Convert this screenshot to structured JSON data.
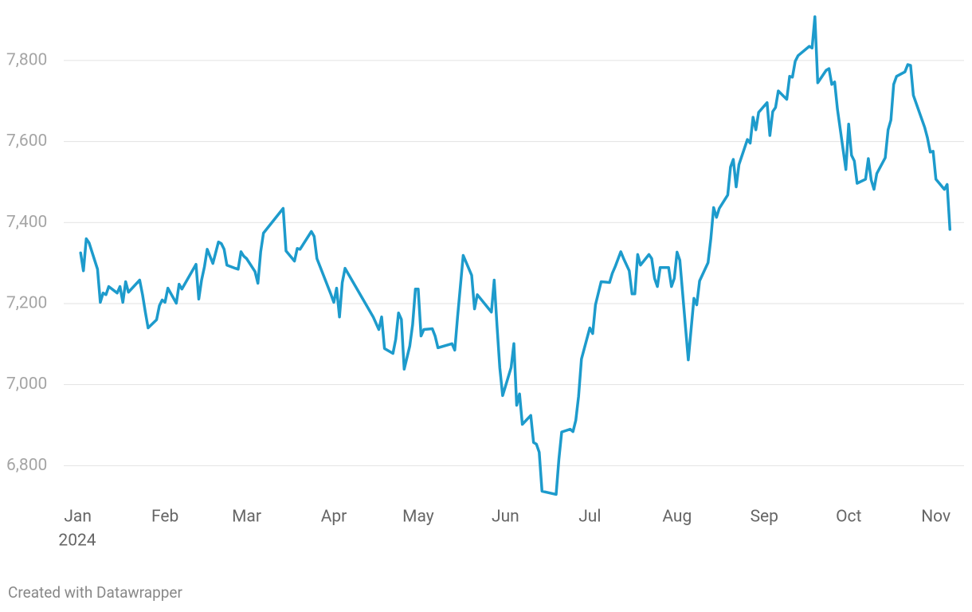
{
  "chart_data": {
    "type": "line",
    "x": [
      1,
      2,
      3,
      4,
      7,
      8,
      9,
      10,
      11,
      14,
      15,
      16,
      17,
      18,
      22,
      23,
      24,
      25,
      28,
      29,
      30,
      31,
      32,
      35,
      36,
      37,
      42,
      43,
      44,
      45,
      46,
      48,
      50,
      51,
      52,
      53,
      56,
      57,
      58,
      59,
      60,
      63,
      64,
      65,
      66,
      73,
      74,
      77,
      78,
      79,
      83,
      84,
      85,
      90,
      91,
      92,
      93,
      94,
      95,
      105,
      107,
      108,
      109,
      112,
      113,
      114,
      115,
      116,
      118,
      119,
      120,
      121,
      122,
      123,
      126,
      127,
      128,
      133,
      134,
      135,
      137,
      140,
      141,
      142,
      147,
      148,
      149,
      150,
      151,
      154,
      155,
      156,
      157,
      158,
      161,
      162,
      163,
      164,
      165,
      170,
      171,
      172,
      175,
      176,
      177,
      178,
      179,
      182,
      183,
      184,
      186,
      189,
      190,
      191,
      193,
      194,
      196,
      197,
      198,
      199,
      200,
      203,
      204,
      205,
      206,
      207,
      210,
      211,
      212,
      213,
      214,
      217,
      219,
      220,
      221,
      224,
      225,
      226,
      227,
      228,
      231,
      232,
      233,
      234,
      235,
      238,
      239,
      240,
      241,
      242,
      245,
      246,
      247,
      248,
      249,
      252,
      253,
      254,
      255,
      256,
      260,
      261,
      262,
      263,
      266,
      267,
      268,
      269,
      270,
      273,
      274,
      275,
      276,
      277,
      280,
      281,
      282,
      283,
      284,
      287,
      288,
      289,
      290,
      291,
      294,
      295,
      296,
      297,
      301,
      302,
      303,
      304,
      305,
      308,
      309,
      310
    ],
    "series": [
      {
        "color": "#1d9bcc",
        "values": [
          7325,
          7281,
          7360,
          7350,
          7285,
          7203,
          7226,
          7222,
          7242,
          7226,
          7242,
          7203,
          7254,
          7228,
          7258,
          7222,
          7179,
          7140,
          7160,
          7195,
          7209,
          7203,
          7238,
          7201,
          7248,
          7236,
          7297,
          7211,
          7258,
          7291,
          7334,
          7299,
          7352,
          7348,
          7334,
          7295,
          7287,
          7285,
          7328,
          7317,
          7311,
          7279,
          7250,
          7328,
          7374,
          7435,
          7330,
          7305,
          7336,
          7334,
          7378,
          7366,
          7311,
          7222,
          7203,
          7238,
          7167,
          7252,
          7287,
          7167,
          7136,
          7167,
          7089,
          7077,
          7112,
          7177,
          7161,
          7038,
          7095,
          7148,
          7236,
          7236,
          7120,
          7136,
          7138,
          7120,
          7091,
          7101,
          7085,
          7169,
          7319,
          7270,
          7187,
          7222,
          7179,
          7258,
          7146,
          7042,
          6973,
          7042,
          7101,
          6949,
          6977,
          6902,
          6924,
          6857,
          6853,
          6833,
          6737,
          6729,
          6816,
          6883,
          6890,
          6884,
          6912,
          6971,
          7063,
          7140,
          7126,
          7197,
          7254,
          7252,
          7275,
          7291,
          7328,
          7311,
          7281,
          7224,
          7224,
          7321,
          7295,
          7321,
          7311,
          7262,
          7242,
          7289,
          7289,
          7242,
          7262,
          7327,
          7307,
          7061,
          7213,
          7197,
          7256,
          7301,
          7360,
          7437,
          7413,
          7435,
          7468,
          7537,
          7556,
          7488,
          7543,
          7605,
          7596,
          7660,
          7629,
          7672,
          7696,
          7615,
          7674,
          7684,
          7725,
          7704,
          7761,
          7759,
          7798,
          7812,
          7835,
          7831,
          7908,
          7745,
          7776,
          7780,
          7741,
          7747,
          7680,
          7531,
          7643,
          7566,
          7552,
          7497,
          7507,
          7558,
          7505,
          7482,
          7521,
          7560,
          7629,
          7653,
          7741,
          7761,
          7772,
          7790,
          7788,
          7714,
          7635,
          7609,
          7574,
          7576,
          7507,
          7482,
          7494,
          7383
        ]
      }
    ],
    "xlim": [
      -5,
      315
    ],
    "xticks": [
      {
        "value": 0,
        "label": "Jan"
      },
      {
        "value": 31,
        "label": "Feb"
      },
      {
        "value": 60,
        "label": "Mar"
      },
      {
        "value": 91,
        "label": "Apr"
      },
      {
        "value": 121,
        "label": "May"
      },
      {
        "value": 152,
        "label": "Jun"
      },
      {
        "value": 182,
        "label": "Jul"
      },
      {
        "value": 213,
        "label": "Aug"
      },
      {
        "value": 244,
        "label": "Sep"
      },
      {
        "value": 274,
        "label": "Oct"
      },
      {
        "value": 305,
        "label": "Nov"
      }
    ],
    "year_label": "2024",
    "ylim": [
      6720,
      7910
    ],
    "yticks": [
      {
        "value": 6800,
        "label": "6,800"
      },
      {
        "value": 7000,
        "label": "7,000"
      },
      {
        "value": 7200,
        "label": "7,200"
      },
      {
        "value": 7400,
        "label": "7,400"
      },
      {
        "value": 7600,
        "label": "7,600"
      },
      {
        "value": 7800,
        "label": "7,800"
      }
    ],
    "grid": true,
    "footer": "Created with Datawrapper"
  }
}
